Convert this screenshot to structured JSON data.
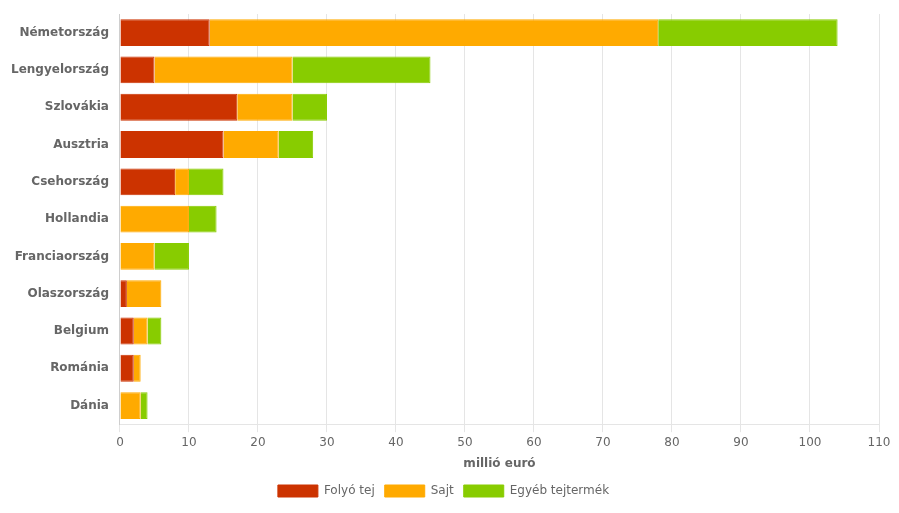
{
  "chart_data": {
    "type": "bar",
    "orientation": "horizontal",
    "stacked": true,
    "categories": [
      "Németország",
      "Lengyelország",
      "Szlovákia",
      "Ausztria",
      "Csehország",
      "Hollandia",
      "Franciaország",
      "Olaszország",
      "Belgium",
      "Románia",
      "Dánia"
    ],
    "series": [
      {
        "name": "Folyó tej",
        "color": "#cc3300",
        "values": [
          13,
          5,
          17,
          15,
          8,
          0,
          0,
          1,
          2,
          2,
          0
        ]
      },
      {
        "name": "Sajt",
        "color": "#ffaa00",
        "values": [
          65,
          20,
          8,
          8,
          2,
          10,
          5,
          5,
          2,
          1,
          3
        ]
      },
      {
        "name": "Egyéb tejtermék",
        "color": "#88cc00",
        "values": [
          26,
          20,
          5,
          5,
          5,
          4,
          5,
          0,
          2,
          0,
          1
        ]
      }
    ],
    "xlabel": "millió euró",
    "xlim": [
      0,
      110
    ],
    "xticks": [
      0,
      10,
      20,
      30,
      40,
      50,
      60,
      70,
      80,
      90,
      100,
      110
    ],
    "grid": true,
    "legend": "bottom"
  }
}
